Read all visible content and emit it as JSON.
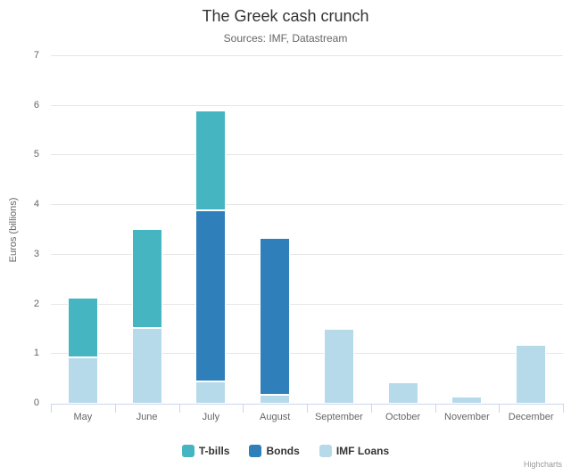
{
  "chart_data": {
    "type": "bar",
    "stacked": true,
    "title": "The Greek cash crunch",
    "subtitle": "Sources: IMF, Datastream",
    "ylabel": "Euros (billions)",
    "xlabel": "",
    "ylim": [
      0,
      7
    ],
    "y_ticks": [
      0,
      1,
      2,
      3,
      4,
      5,
      6,
      7
    ],
    "grid": true,
    "legend_position": "bottom",
    "categories": [
      "May",
      "June",
      "July",
      "August",
      "September",
      "October",
      "November",
      "December"
    ],
    "series": [
      {
        "name": "T-bills",
        "color": "#45B5C2",
        "values": [
          1.2,
          2.0,
          2.0,
          0,
          0,
          0,
          0,
          0
        ]
      },
      {
        "name": "Bonds",
        "color": "#2E7FBA",
        "values": [
          0,
          0,
          3.45,
          3.15,
          0,
          0,
          0,
          0
        ]
      },
      {
        "name": "IMF Loans",
        "color": "#B6DAEA",
        "values": [
          0.93,
          1.52,
          0.45,
          0.18,
          1.5,
          0.43,
          0.14,
          1.18
        ]
      }
    ],
    "stack_order_bottom_to_top": [
      "IMF Loans",
      "Bonds",
      "T-bills"
    ]
  },
  "credit": {
    "label": "Highcharts"
  },
  "colors": {
    "background": "#FFFFFF",
    "grid_line": "#E6E6E6",
    "axis_line": "#CCD6EB",
    "title_text": "#333333",
    "subtitle_text": "#666666",
    "axis_label_text": "#666666",
    "legend_text": "#333333",
    "credit_text": "#999999"
  }
}
